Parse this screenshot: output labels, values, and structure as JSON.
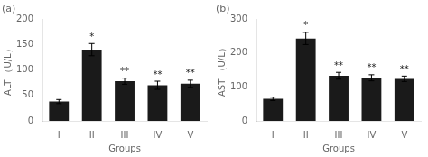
{
  "chart_data": [
    {
      "type": "bar",
      "title": "(a)",
      "xlabel": "Groups",
      "ylabel": "ALT （U/L）",
      "categories": [
        "I",
        "II",
        "III",
        "IV",
        "V"
      ],
      "values": [
        38,
        140,
        78,
        70,
        73
      ],
      "errors": [
        4,
        12,
        6,
        8,
        7
      ],
      "annotations": [
        null,
        "*",
        "**",
        "**",
        "**"
      ],
      "color": "#1a1a1a",
      "ylim": [
        0,
        200
      ],
      "yticks": [
        0,
        50,
        100,
        150,
        200
      ],
      "grid": false
    },
    {
      "type": "bar",
      "title": "(b)",
      "xlabel": "Groups",
      "ylabel": "AST （U/L）",
      "categories": [
        "I",
        "II",
        "III",
        "IV",
        "V"
      ],
      "values": [
        65,
        243,
        133,
        127,
        124
      ],
      "errors": [
        5,
        18,
        10,
        9,
        8
      ],
      "annotations": [
        null,
        "*",
        "**",
        "**",
        "**"
      ],
      "color": "#1a1a1a",
      "ylim": [
        0,
        300
      ],
      "yticks": [
        0,
        100,
        200,
        300
      ],
      "grid": false
    }
  ]
}
